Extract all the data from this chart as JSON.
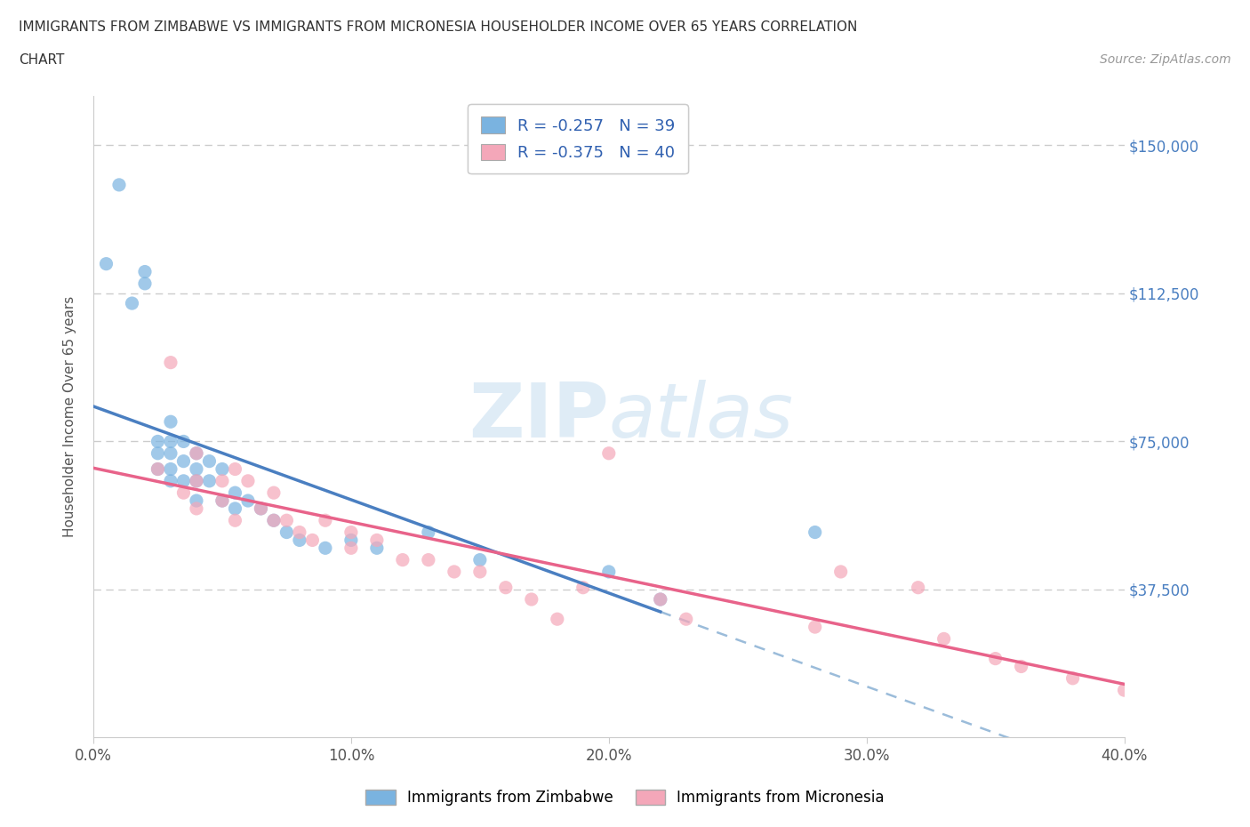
{
  "title_line1": "IMMIGRANTS FROM ZIMBABWE VS IMMIGRANTS FROM MICRONESIA HOUSEHOLDER INCOME OVER 65 YEARS CORRELATION",
  "title_line2": "CHART",
  "source_text": "Source: ZipAtlas.com",
  "ylabel": "Householder Income Over 65 years",
  "xlim": [
    0.0,
    0.4
  ],
  "ylim": [
    0,
    162500
  ],
  "xtick_labels": [
    "0.0%",
    "10.0%",
    "20.0%",
    "30.0%",
    "40.0%"
  ],
  "xtick_values": [
    0.0,
    0.1,
    0.2,
    0.3,
    0.4
  ],
  "ytick_labels": [
    "$37,500",
    "$75,000",
    "$112,500",
    "$150,000"
  ],
  "ytick_values": [
    37500,
    75000,
    112500,
    150000
  ],
  "watermark_zip": "ZIP",
  "watermark_atlas": "atlas",
  "legend1_text": "R = -0.257   N = 39",
  "legend2_text": "R = -0.375   N = 40",
  "legend_bottom_label1": "Immigrants from Zimbabwe",
  "legend_bottom_label2": "Immigrants from Micronesia",
  "zim_color": "#7ab3e0",
  "mic_color": "#f4a7b9",
  "zim_line_color": "#4a7fc1",
  "mic_line_color": "#e8638a",
  "dashed_line_color": "#9bbcda",
  "zim_scatter_x": [
    0.005,
    0.01,
    0.015,
    0.02,
    0.02,
    0.025,
    0.025,
    0.025,
    0.03,
    0.03,
    0.03,
    0.03,
    0.03,
    0.035,
    0.035,
    0.035,
    0.04,
    0.04,
    0.04,
    0.04,
    0.045,
    0.045,
    0.05,
    0.05,
    0.055,
    0.055,
    0.06,
    0.065,
    0.07,
    0.075,
    0.08,
    0.09,
    0.1,
    0.11,
    0.13,
    0.15,
    0.2,
    0.22,
    0.28
  ],
  "zim_scatter_y": [
    120000,
    140000,
    110000,
    115000,
    118000,
    75000,
    72000,
    68000,
    80000,
    75000,
    72000,
    68000,
    65000,
    75000,
    70000,
    65000,
    72000,
    68000,
    65000,
    60000,
    70000,
    65000,
    68000,
    60000,
    62000,
    58000,
    60000,
    58000,
    55000,
    52000,
    50000,
    48000,
    50000,
    48000,
    52000,
    45000,
    42000,
    35000,
    52000
  ],
  "mic_scatter_x": [
    0.025,
    0.03,
    0.035,
    0.04,
    0.04,
    0.04,
    0.05,
    0.05,
    0.055,
    0.055,
    0.06,
    0.065,
    0.07,
    0.07,
    0.075,
    0.08,
    0.085,
    0.09,
    0.1,
    0.1,
    0.11,
    0.12,
    0.13,
    0.14,
    0.15,
    0.16,
    0.17,
    0.18,
    0.19,
    0.2,
    0.22,
    0.23,
    0.28,
    0.29,
    0.32,
    0.33,
    0.35,
    0.36,
    0.38,
    0.4
  ],
  "mic_scatter_y": [
    68000,
    95000,
    62000,
    72000,
    65000,
    58000,
    65000,
    60000,
    68000,
    55000,
    65000,
    58000,
    62000,
    55000,
    55000,
    52000,
    50000,
    55000,
    52000,
    48000,
    50000,
    45000,
    45000,
    42000,
    42000,
    38000,
    35000,
    30000,
    38000,
    72000,
    35000,
    30000,
    28000,
    42000,
    38000,
    25000,
    20000,
    18000,
    15000,
    12000
  ],
  "background_color": "#ffffff",
  "grid_color": "#cccccc",
  "title_color": "#333333",
  "axis_label_color": "#555555",
  "tick_color_right": "#4a7fc1"
}
